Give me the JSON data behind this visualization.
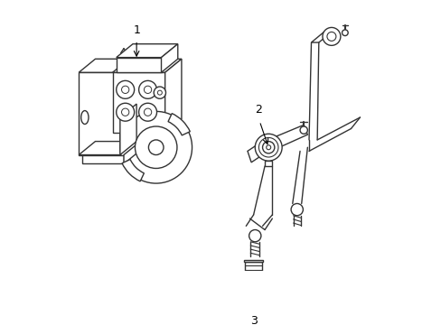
{
  "background_color": "#ffffff",
  "line_color": "#333333",
  "line_width": 1.0,
  "label_1": "1",
  "label_2": "2",
  "label_3": "3",
  "figsize": [
    4.89,
    3.6
  ],
  "dpi": 100
}
